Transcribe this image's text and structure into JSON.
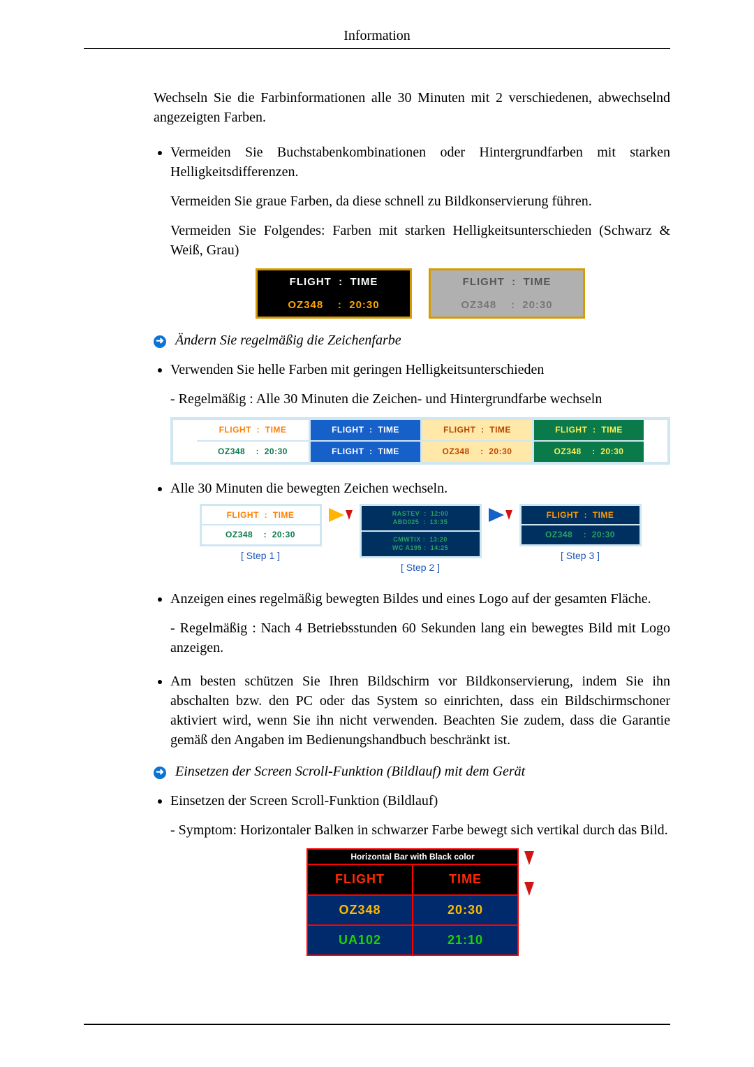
{
  "header": {
    "title": "Information"
  },
  "intro": "Wechseln Sie die Farbinformationen alle 30 Minuten mit 2 verschiedenen, abwechselnd angezeigten Farben.",
  "b1": {
    "p1": "Vermeiden Sie Buchstabenkombinationen oder Hintergrundfarben mit starken Helligkeitsdifferenzen.",
    "p2": "Vermeiden Sie graue Farben, da diese schnell zu Bildkonservierung führen.",
    "p3": "Vermeiden Sie Folgendes: Farben mit starken Helligkeitsunterschieden (Schwarz & Weiß, Grau)"
  },
  "ex1": {
    "header": "FLIGHT  :  TIME",
    "row": "OZ348    :  20:30",
    "colors": {
      "black_bg": "#000000",
      "white": "#ffffff",
      "orange": "#ffa500",
      "grey_bg": "#b0b0b0",
      "grey_txt1": "#555555",
      "grey_txt2": "#777777",
      "border": "#d59b00"
    }
  },
  "callout1": "Ändern Sie regelmäßig die Zeichenfarbe",
  "b2": {
    "p1": "Verwenden Sie helle Farben mit geringen Helligkeitsunterschieden",
    "sub": "- Regelmäßig : Alle 30 Minuten die Zeichen- und Hintergrundfarbe wechseln"
  },
  "ex2": {
    "frame_color": "#cfe6f3",
    "header": "FLIGHT  :  TIME",
    "row": "OZ348    :  20:30",
    "alt_row": "FLIGHT  :  TIME",
    "cells": [
      {
        "bg1": "#ffffff",
        "fg1": "#ff7f00",
        "bg2": "#ffffff",
        "fg2": "#0a7a4b"
      },
      {
        "bg1": "#1660c9",
        "fg1": "#ffffff",
        "bg2": "#1660c9",
        "fg2": "#ffffff"
      },
      {
        "bg1": "#ffe8a8",
        "fg1": "#b04500",
        "bg2": "#ffe8a8",
        "fg2": "#c04500"
      },
      {
        "bg1": "#0a7a4b",
        "fg1": "#ffee55",
        "bg2": "#0a7a4b",
        "fg2": "#ffee55"
      }
    ]
  },
  "b3": {
    "p1": "Alle 30 Minuten die bewegten Zeichen wechseln."
  },
  "ex3": {
    "frame_color": "#cfe6f3",
    "header": "FLIGHT  :  TIME",
    "row": "OZ348    :  20:30",
    "steps": [
      {
        "label": "[ Step 1 ]",
        "bg": "#ffffff",
        "fg1": "#ff7f00",
        "fg2": "#0a7a4b",
        "scramble": false
      },
      {
        "label": "[ Step 2 ]",
        "bg": "#003060",
        "fg": "#2aa060",
        "scramble": true,
        "l1": "RASTEV  :  12:00",
        "l2": "ABD025  :  13:35",
        "l3": "CMWTIX :  13:20",
        "l4": "WC A195 :  14:25"
      },
      {
        "label": "[ Step 3 ]",
        "bg": "#003060",
        "fg1": "#ff9a00",
        "fg2": "#2aa060",
        "scramble": false
      }
    ],
    "arrow1_big": "#ffb400",
    "arrow1_small": "#d01515",
    "arrow2_big": "#1660c9",
    "arrow2_small": "#d01515"
  },
  "b4": {
    "p1": "Anzeigen eines regelmäßig bewegten Bildes und eines Logo auf der gesamten Fläche.",
    "sub": "- Regelmäßig : Nach 4 Betriebsstunden 60 Sekunden lang ein bewegtes Bild mit Logo anzeigen."
  },
  "b5": {
    "p1": "Am besten schützen Sie Ihren Bildschirm vor Bildkonservierung, indem Sie ihn abschalten bzw. den PC oder das System so einrichten, dass ein Bildschirmschoner aktiviert wird, wenn Sie ihn nicht verwenden. Beachten Sie zudem, dass die Garantie gemäß den Angaben im Bedienungshandbuch beschränkt ist."
  },
  "callout2": "Einsetzen der Screen Scroll-Funktion (Bildlauf) mit dem Gerät",
  "b6": {
    "p1": "Einsetzen der Screen Scroll-Funktion (Bildlauf)",
    "sub": "- Symptom: Horizontaler Balken in schwarzer Farbe bewegt sich vertikal durch das Bild."
  },
  "ex4": {
    "caption": "Horizontal Bar with Black color",
    "border": "#ff0000",
    "arrow_color": "#d01515",
    "rows": [
      {
        "c1": "FLIGHT",
        "c2": "TIME",
        "bg": "#000000",
        "fg": "#ff2a00"
      },
      {
        "c1": "OZ348",
        "c2": "20:30",
        "bg": "#002a6b",
        "fg": "#ffbb00"
      },
      {
        "c1": "UA102",
        "c2": "21:10",
        "bg": "#002a6b",
        "fg": "#1ed400"
      }
    ]
  }
}
